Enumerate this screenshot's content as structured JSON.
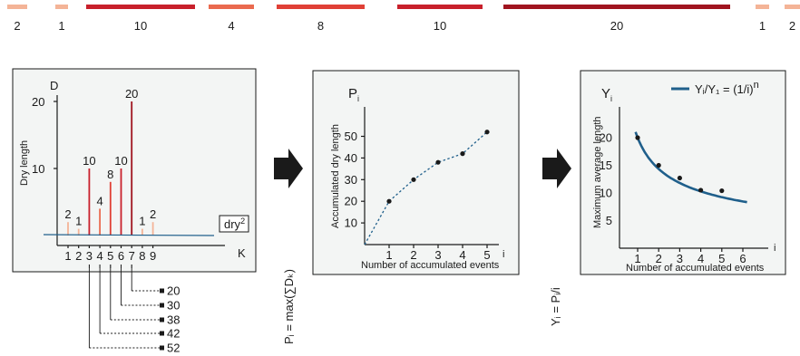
{
  "top_bar": {
    "segments": [
      {
        "label": "2",
        "color": "#f4b497"
      },
      {
        "label": "1",
        "color": "#f4b497"
      },
      {
        "label": "10",
        "color": "#c8202b"
      },
      {
        "label": "4",
        "color": "#ea6a4f"
      },
      {
        "label": "8",
        "color": "#e04036"
      },
      {
        "label": "10",
        "color": "#c8202b"
      },
      {
        "label": "20",
        "color": "#a0141f"
      },
      {
        "label": "1",
        "color": "#f4b497"
      },
      {
        "label": "2",
        "color": "#f4b497"
      }
    ]
  },
  "panel1": {
    "axis_d": "D",
    "axis_k": "K",
    "ylabel": "Dry length",
    "yticks": [
      "20",
      "10"
    ],
    "xticks": [
      "1",
      "2",
      "3",
      "4",
      "5",
      "6",
      "7",
      "8",
      "9"
    ],
    "threshold_label": "dry",
    "threshold_sup": "2",
    "bars": [
      {
        "k": 1,
        "value": 2,
        "color": "#f4b497"
      },
      {
        "k": 2,
        "value": 1,
        "color": "#f4b497"
      },
      {
        "k": 3,
        "value": 10,
        "color": "#c8202b"
      },
      {
        "k": 4,
        "value": 4,
        "color": "#ea6a4f"
      },
      {
        "k": 5,
        "value": 8,
        "color": "#e04036"
      },
      {
        "k": 6,
        "value": 10,
        "color": "#c8202b"
      },
      {
        "k": 7,
        "value": 20,
        "color": "#a0141f"
      },
      {
        "k": 8,
        "value": 1,
        "color": "#f4b497"
      },
      {
        "k": 9,
        "value": 2,
        "color": "#f4b497"
      }
    ],
    "bar_labels": [
      "2",
      "1",
      "10",
      "4",
      "8",
      "10",
      "20",
      "1",
      "2"
    ],
    "cumulative": [
      "20",
      "30",
      "38",
      "42",
      "52"
    ]
  },
  "arrow1_formula": "Pᵢ = max(∑Dₖ)",
  "panel2": {
    "title_main": "P",
    "title_sub": "i",
    "ylabel": "Accumulated dry length",
    "xlabel": "Number of accumulated events",
    "x_axis_letter": "i",
    "yticks": [
      "50",
      "40",
      "30",
      "20",
      "10"
    ],
    "xticks": [
      "1",
      "2",
      "3",
      "4",
      "5"
    ]
  },
  "arrow2_formula": "Yᵢ = Pᵢ/i",
  "panel3": {
    "title_main": "Y",
    "title_sub": "i",
    "ylabel": "Maximum average length",
    "xlabel": "Number of accumulated events",
    "x_axis_letter": "i",
    "yticks": [
      "20",
      "15",
      "10",
      "5"
    ],
    "xticks": [
      "1",
      "2",
      "3",
      "4",
      "5",
      "6"
    ],
    "legend": "Yᵢ/Y₁ = (1/i)",
    "legend_exp": "n",
    "curve_color": "#1f5f8b"
  },
  "chart_data": [
    {
      "type": "bar",
      "categories": [
        "1",
        "2",
        "3",
        "4",
        "5",
        "6",
        "7",
        "8",
        "9"
      ],
      "values": [
        2,
        1,
        10,
        4,
        8,
        10,
        20,
        1,
        2
      ],
      "xlabel": "K",
      "ylabel": "Dry length",
      "ylim": [
        0,
        22
      ]
    },
    {
      "type": "line",
      "x": [
        1,
        2,
        3,
        4,
        5
      ],
      "values": [
        20,
        30,
        38,
        42,
        52
      ],
      "xlabel": "Number of accumulated events",
      "ylabel": "Accumulated dry length",
      "ylim": [
        0,
        58
      ]
    },
    {
      "type": "scatter",
      "x": [
        1,
        2,
        3,
        4,
        5
      ],
      "values": [
        20,
        15,
        12.7,
        10.5,
        10.4
      ],
      "xlabel": "Number of accumulated events",
      "ylabel": "Maximum average length",
      "ylim": [
        0,
        25
      ]
    }
  ]
}
